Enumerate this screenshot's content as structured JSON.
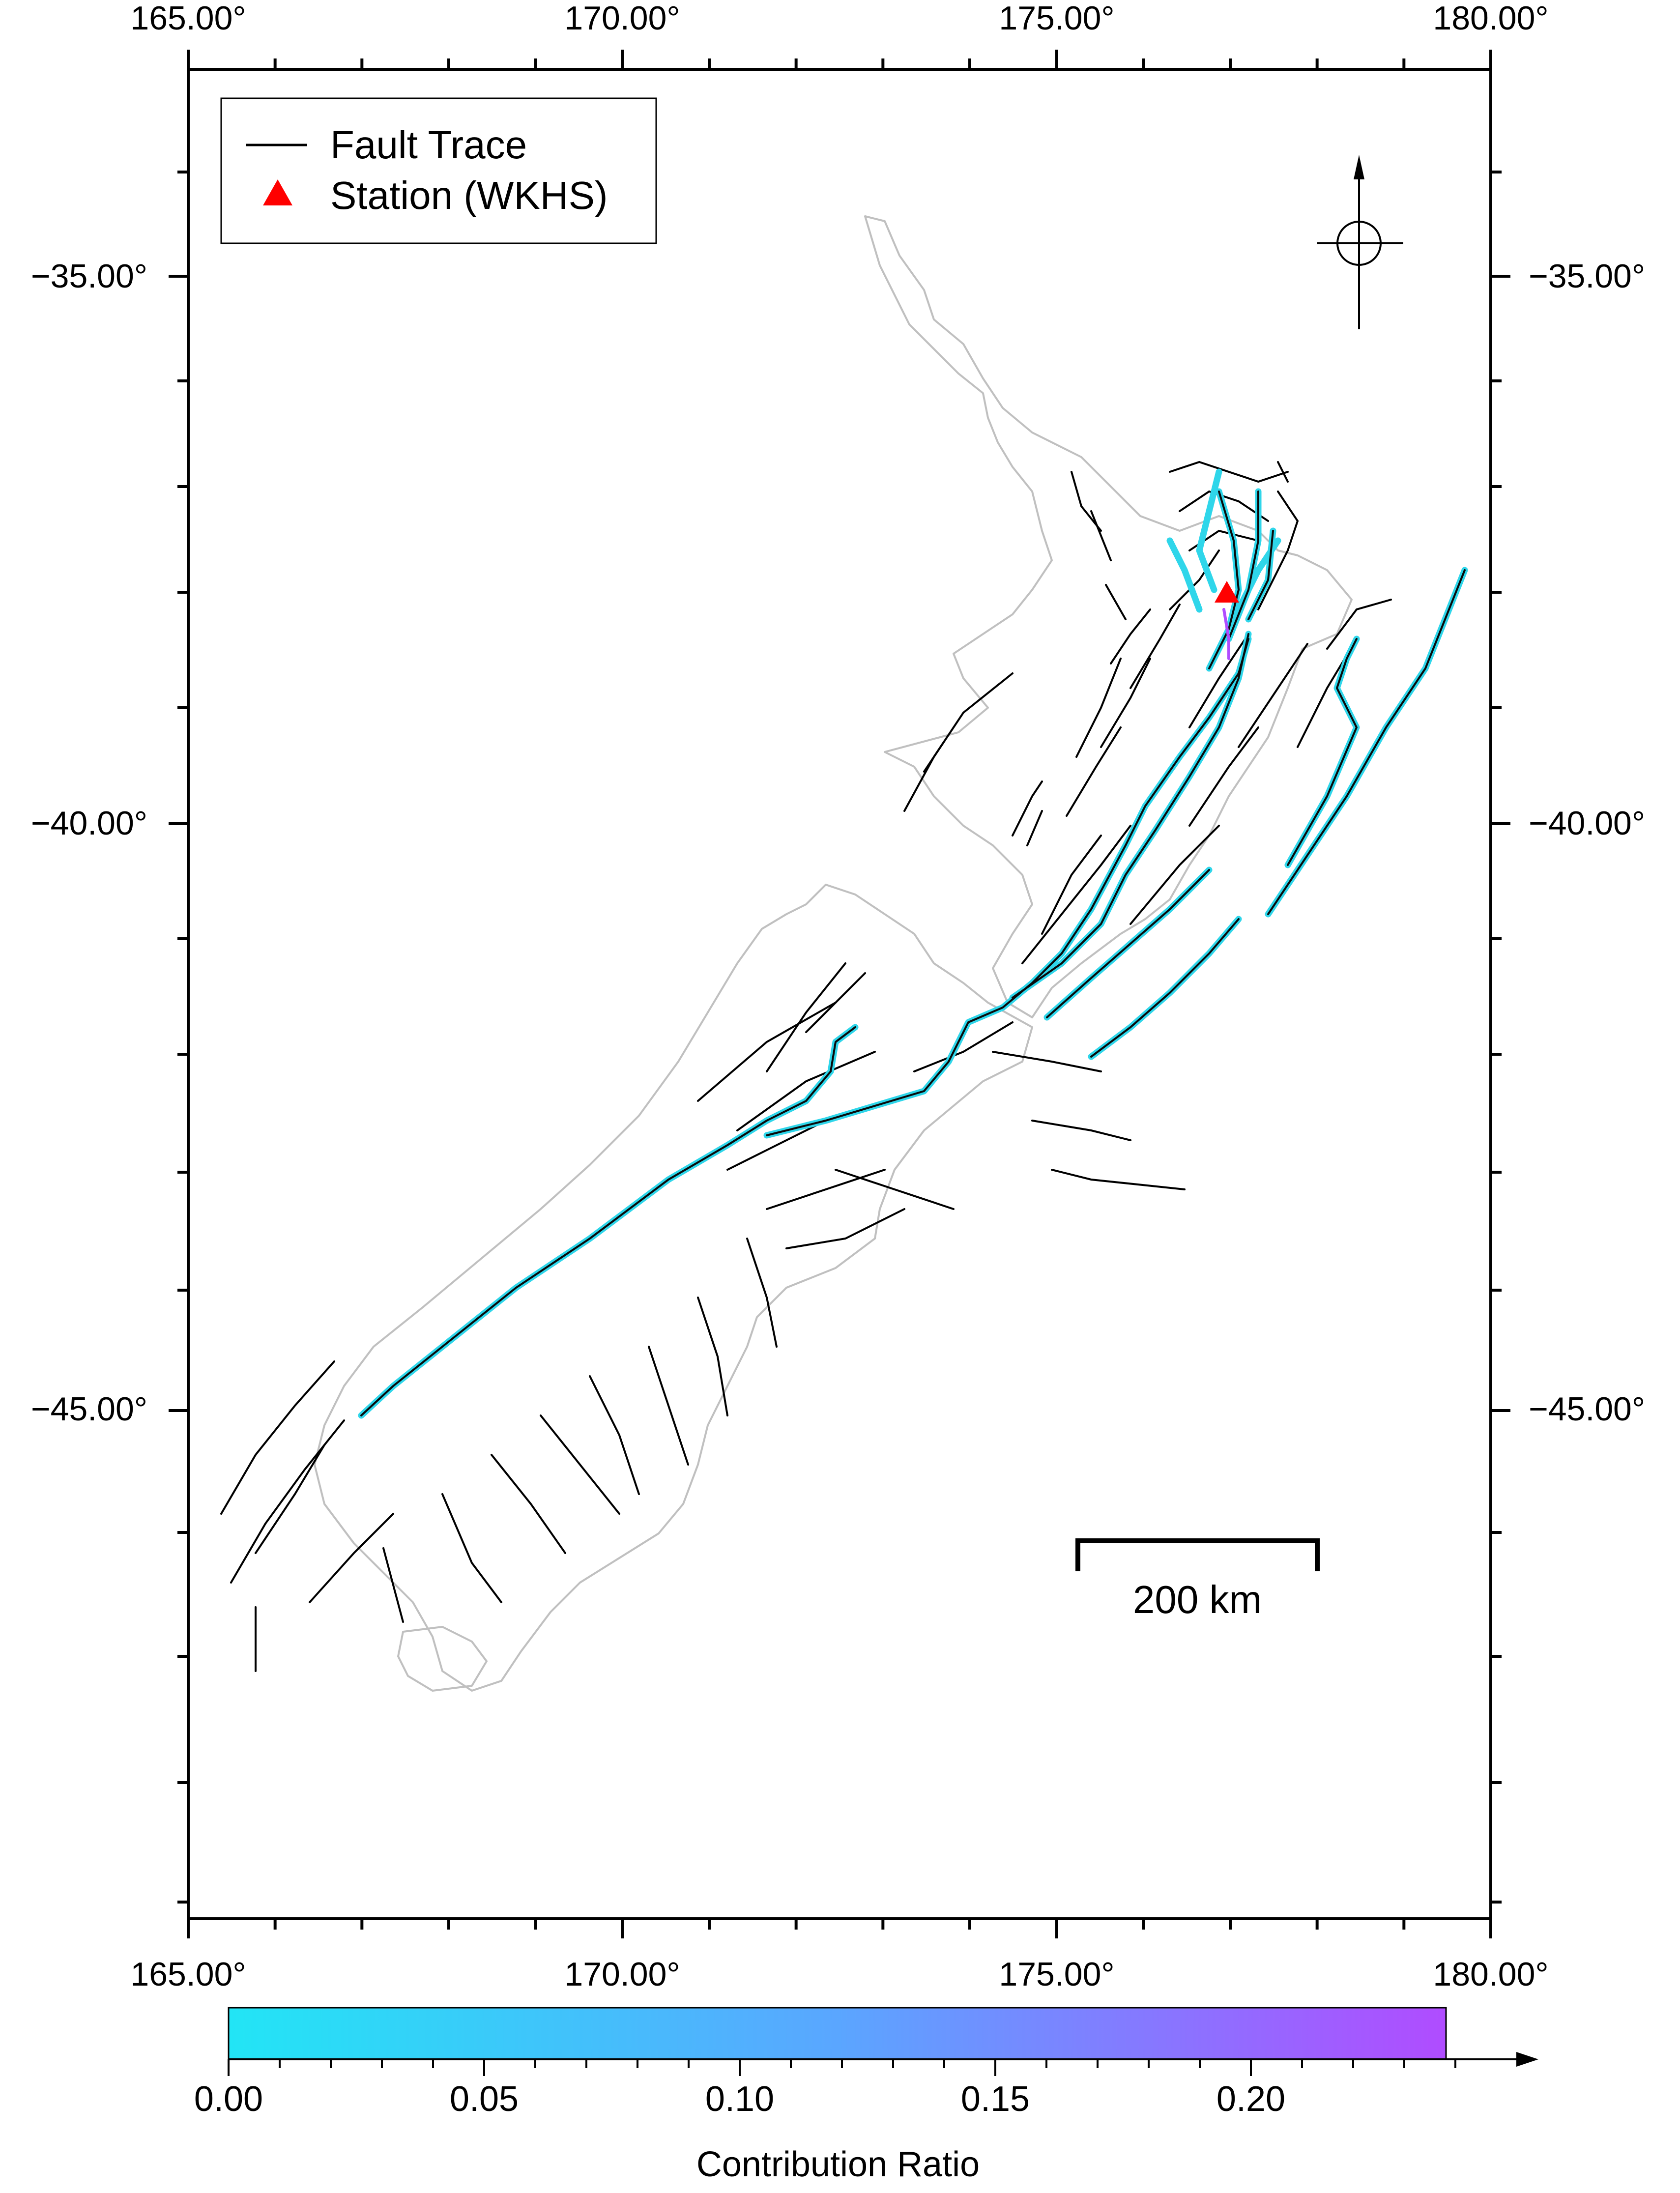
{
  "map": {
    "lon_ticks": [
      "165.00°",
      "170.00°",
      "175.00°",
      "180.00°"
    ],
    "lat_ticks": [
      "−35.00°",
      "−40.00°",
      "−45.00°"
    ],
    "lon_range": [
      165,
      180
    ],
    "lat_range": [
      -32.5,
      -49.5
    ]
  },
  "legend": {
    "fault_trace_label": "Fault Trace",
    "station_label": "Station (WKHS)"
  },
  "station": {
    "lon": 177.0,
    "lat": -37.9,
    "color": "#ff0000"
  },
  "scale_bar": {
    "label": "200 km"
  },
  "colorbar": {
    "title": "Contribution Ratio",
    "ticks": [
      "0.00",
      "0.05",
      "0.10",
      "0.15",
      "0.20"
    ],
    "color_min": "#22e5f5",
    "color_mid": "#5aa6ff",
    "color_max": "#b04cff"
  },
  "colors": {
    "coastline": "#c0c0c0",
    "fault": "#000000",
    "highlight_fault": "#2fd6ea"
  }
}
